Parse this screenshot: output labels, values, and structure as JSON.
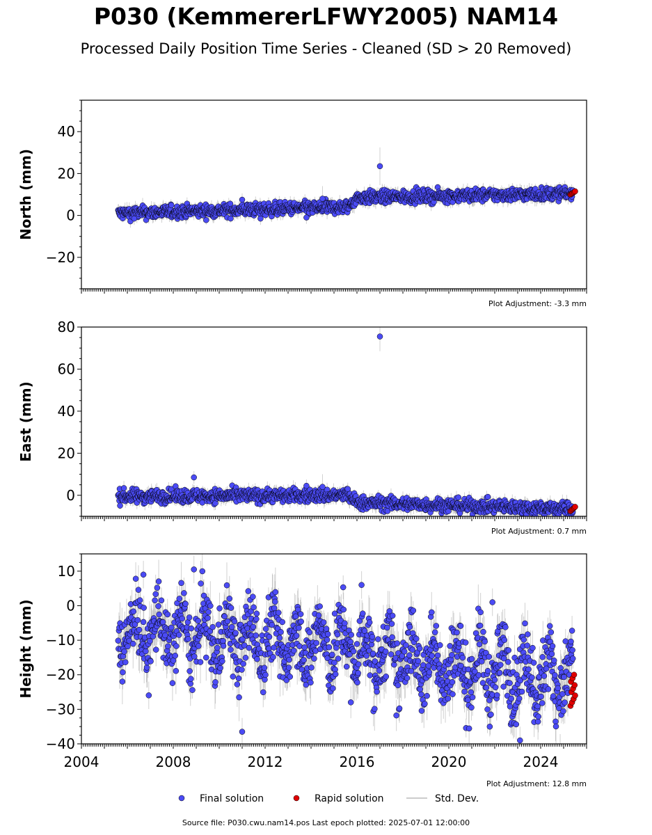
{
  "title": "P030 (KemmererLFWY2005) NAM14",
  "subtitle": "Processed Daily Position Time Series - Cleaned (SD > 20 Removed)",
  "source_note": "Source file: P030.cwu.nam14.pos  Last epoch plotted: 2025-07-01 12:00:00",
  "colors": {
    "final": "#4b4bf5",
    "rapid": "#e00000",
    "stddev": "#999999",
    "marker_edge": "#000000"
  },
  "legend": [
    {
      "key": "final",
      "label": "Final solution",
      "marker": "circle"
    },
    {
      "key": "rapid",
      "label": "Rapid solution",
      "marker": "circle"
    },
    {
      "key": "stddev",
      "label": "Std. Dev.",
      "marker": "line"
    }
  ],
  "chart_data": [
    {
      "type": "scatter",
      "panel": "north",
      "ylabel": "North (mm)",
      "xlim": [
        2004.0,
        2026.0
      ],
      "ylim": [
        -35,
        55
      ],
      "yticks": [
        -20,
        0,
        20,
        40
      ],
      "ytick_labels": [
        "−20",
        "0",
        "20",
        "40"
      ],
      "show_x_tick_labels": false,
      "adjustment": "Plot Adjustment: -3.3 mm",
      "trend_segments": [
        {
          "x0": 2005.6,
          "x1": 2015.6,
          "y0": 1.0,
          "y1": 4.0
        },
        {
          "x0": 2015.6,
          "x1": 2016.0,
          "y0": 4.0,
          "y1": 8.5
        },
        {
          "x0": 2016.0,
          "x1": 2025.4,
          "y0": 8.5,
          "y1": 10.5
        }
      ],
      "scatter_mm": 1.5,
      "sd_mm": 2.0,
      "outliers": [
        {
          "x": 2017.0,
          "y": 23.5,
          "sd": 9
        },
        {
          "x": 2014.5,
          "y": 8.0,
          "sd": 6
        },
        {
          "x": 2011.8,
          "y": -1.5,
          "sd": 3
        },
        {
          "x": 2013.8,
          "y": -1.0,
          "sd": 3
        },
        {
          "x": 2006.3,
          "y": -1.5,
          "sd": 3
        },
        {
          "x": 2011.0,
          "y": 7.5,
          "sd": 3
        }
      ],
      "rapid": {
        "x0": 2025.3,
        "x1": 2025.5,
        "y0": 10.0,
        "y1": 11.5,
        "n": 6
      }
    },
    {
      "type": "scatter",
      "panel": "east",
      "ylabel": "East (mm)",
      "xlim": [
        2004.0,
        2026.0
      ],
      "ylim": [
        -10,
        80
      ],
      "yticks": [
        0,
        20,
        40,
        60,
        80
      ],
      "ytick_labels": [
        "0",
        "20",
        "40",
        "60",
        "80"
      ],
      "show_x_tick_labels": false,
      "adjustment": "Plot Adjustment: 0.7 mm",
      "trend_segments": [
        {
          "x0": 2005.6,
          "x1": 2015.6,
          "y0": -0.5,
          "y1": 0.0
        },
        {
          "x0": 2015.6,
          "x1": 2016.0,
          "y0": 0.0,
          "y1": -3.5
        },
        {
          "x0": 2016.0,
          "x1": 2025.4,
          "y0": -3.5,
          "y1": -6.5
        }
      ],
      "scatter_mm": 1.6,
      "sd_mm": 2.0,
      "outliers": [
        {
          "x": 2017.0,
          "y": 75.5,
          "sd": 7
        },
        {
          "x": 2008.9,
          "y": 8.5,
          "sd": 3
        },
        {
          "x": 2013.8,
          "y": 4.5,
          "sd": 3
        },
        {
          "x": 2014.5,
          "y": 4.0,
          "sd": 6
        },
        {
          "x": 2015.6,
          "y": 3.0,
          "sd": 3
        }
      ],
      "rapid": {
        "x0": 2025.3,
        "x1": 2025.5,
        "y0": -7.5,
        "y1": -5.5,
        "n": 6
      }
    },
    {
      "type": "scatter",
      "panel": "height",
      "ylabel": "Height (mm)",
      "xlim": [
        2004.0,
        2026.0
      ],
      "ylim": [
        -40,
        15
      ],
      "yticks": [
        -40,
        -30,
        -20,
        -10,
        0,
        10
      ],
      "ytick_labels": [
        "−40",
        "−30",
        "−20",
        "−10",
        "0",
        "10"
      ],
      "xticks": [
        2004,
        2008,
        2012,
        2016,
        2020,
        2024
      ],
      "xtick_labels": [
        "2004",
        "2008",
        "2012",
        "2016",
        "2020",
        "2024"
      ],
      "show_x_tick_labels": true,
      "adjustment": "Plot Adjustment: 12.8 mm",
      "trend_segments": [
        {
          "x0": 2005.6,
          "x1": 2016.0,
          "y0": -7.0,
          "y1": -12.0
        },
        {
          "x0": 2016.0,
          "x1": 2025.4,
          "y0": -14.0,
          "y1": -21.0
        }
      ],
      "seasonal_amp_mm": 6.0,
      "scatter_mm": 5.0,
      "sd_mm": 4.0,
      "outliers": [
        {
          "x": 2008.9,
          "y": 10.5,
          "sd": 4
        },
        {
          "x": 2006.7,
          "y": 9.0,
          "sd": 4
        },
        {
          "x": 2016.2,
          "y": 6.0,
          "sd": 4
        },
        {
          "x": 2011.0,
          "y": -36.5,
          "sd": 4
        },
        {
          "x": 2023.1,
          "y": -39.0,
          "sd": 4
        },
        {
          "x": 2021.9,
          "y": 1.0,
          "sd": 4
        }
      ],
      "rapid": {
        "x0": 2025.3,
        "x1": 2025.5,
        "y0": -29.0,
        "y1": -20.0,
        "n": 10
      }
    }
  ]
}
